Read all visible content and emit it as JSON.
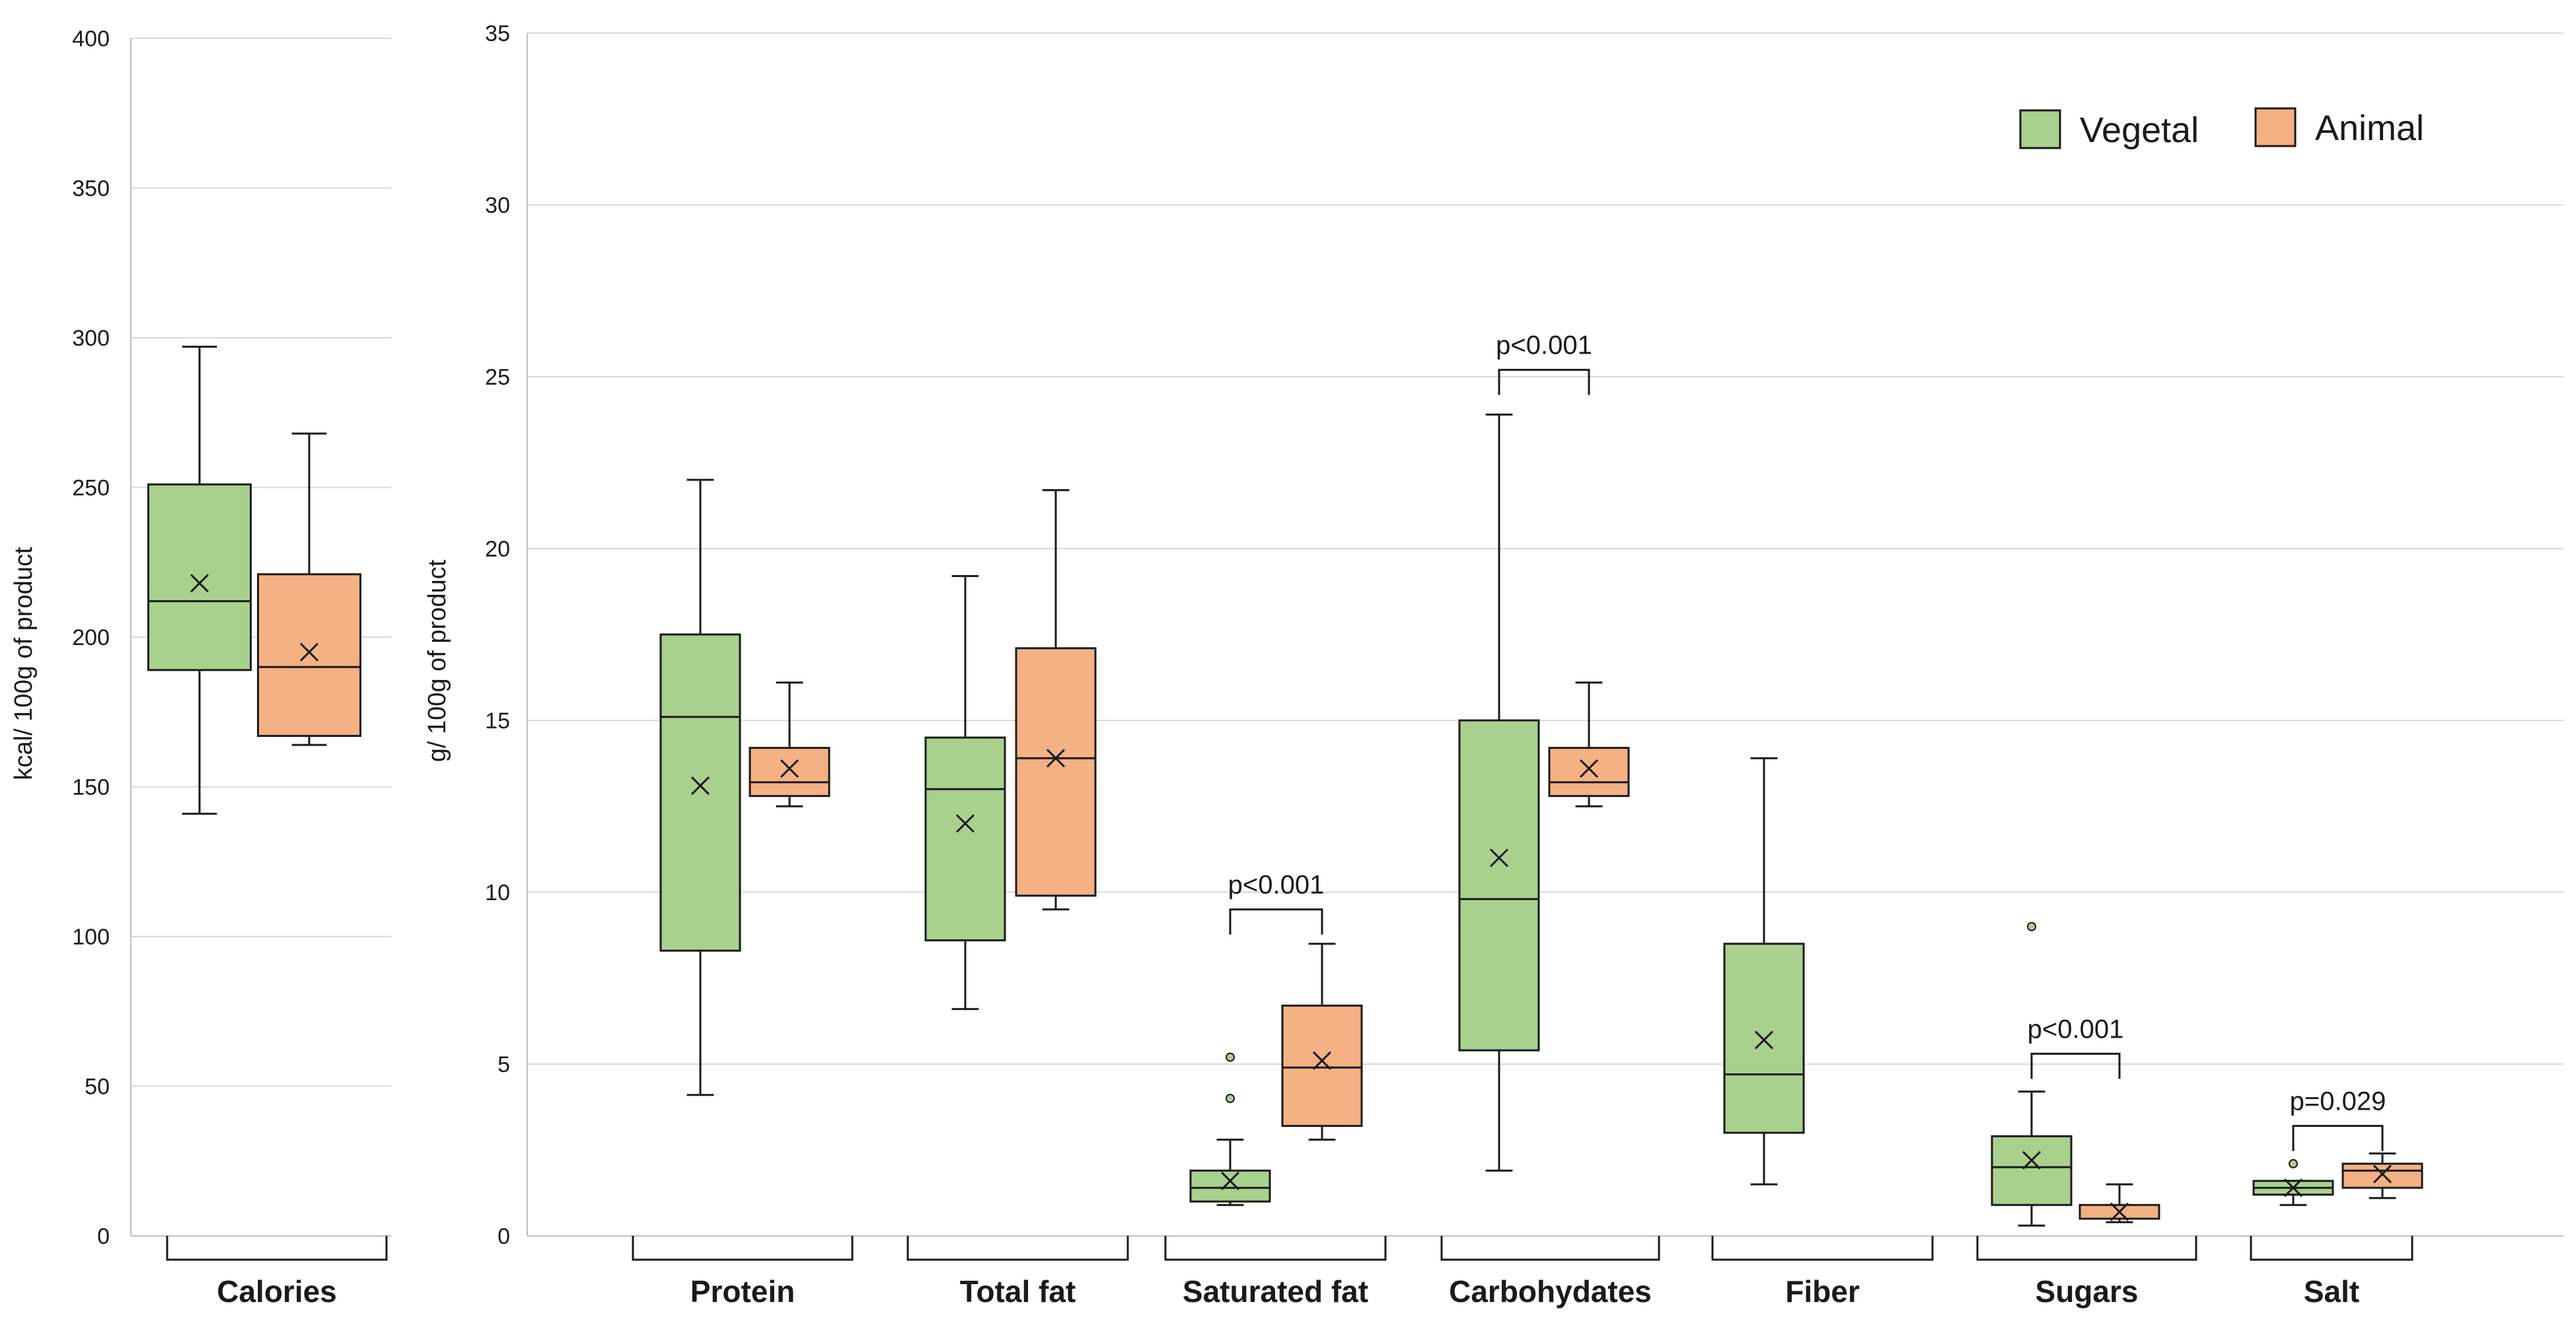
{
  "colors": {
    "Vegetal": "#a9d18e",
    "Animal": "#f4b183"
  },
  "chart_data": [
    {
      "type": "box",
      "panel": "calories",
      "ylabel": "kcal/ 100g of product",
      "ylim": [
        0,
        400
      ],
      "yticks": [
        0,
        50,
        100,
        150,
        200,
        250,
        300,
        350,
        400
      ],
      "categories": [
        "Calories"
      ],
      "series": [
        {
          "name": "Vegetal",
          "stats": [
            {
              "min": 141,
              "q1": 189,
              "median": 212,
              "q3": 251,
              "max": 297,
              "mean": 218,
              "outliers": []
            }
          ]
        },
        {
          "name": "Animal",
          "stats": [
            {
              "min": 164,
              "q1": 167,
              "median": 190,
              "q3": 221,
              "max": 268,
              "mean": 195,
              "outliers": []
            }
          ]
        }
      ],
      "annotations": []
    },
    {
      "type": "box",
      "panel": "nutrients",
      "ylabel": "g/ 100g of product",
      "ylim": [
        0,
        35
      ],
      "yticks": [
        0,
        5,
        10,
        15,
        20,
        25,
        30,
        35
      ],
      "categories": [
        "Protein",
        "Total fat",
        "Saturated fat",
        "Carbohydates",
        "Fiber",
        "Sugars",
        "Salt"
      ],
      "legend": {
        "position": "top-right",
        "entries": [
          "Vegetal",
          "Animal"
        ]
      },
      "series": [
        {
          "name": "Vegetal",
          "stats": [
            {
              "min": 4.1,
              "q1": 8.3,
              "median": 15.1,
              "q3": 17.5,
              "max": 22.0,
              "mean": 13.1,
              "outliers": []
            },
            {
              "min": 6.6,
              "q1": 8.6,
              "median": 13.0,
              "q3": 14.5,
              "max": 19.2,
              "mean": 12.0,
              "outliers": []
            },
            {
              "min": 0.9,
              "q1": 1.0,
              "median": 1.4,
              "q3": 1.9,
              "max": 2.8,
              "mean": 1.6,
              "outliers": [
                4.0,
                5.2
              ]
            },
            {
              "min": 1.9,
              "q1": 5.4,
              "median": 9.8,
              "q3": 15.0,
              "max": 23.9,
              "mean": 11.0,
              "outliers": []
            },
            {
              "min": 1.5,
              "q1": 3.0,
              "median": 4.7,
              "q3": 8.5,
              "max": 13.9,
              "mean": 5.7,
              "outliers": []
            },
            {
              "min": 0.3,
              "q1": 0.9,
              "median": 2.0,
              "q3": 2.9,
              "max": 4.2,
              "mean": 2.2,
              "outliers": [
                9.0
              ]
            },
            {
              "min": 0.9,
              "q1": 1.2,
              "median": 1.4,
              "q3": 1.6,
              "max": 1.6,
              "mean": 1.4,
              "outliers": [
                2.1
              ]
            }
          ]
        },
        {
          "name": "Animal",
          "stats": [
            {
              "min": 12.5,
              "q1": 12.8,
              "median": 13.2,
              "q3": 14.2,
              "max": 16.1,
              "mean": 13.6,
              "outliers": []
            },
            {
              "min": 9.5,
              "q1": 9.9,
              "median": 13.9,
              "q3": 17.1,
              "max": 21.7,
              "mean": 13.9,
              "outliers": []
            },
            {
              "min": 2.8,
              "q1": 3.2,
              "median": 4.9,
              "q3": 6.7,
              "max": 8.5,
              "mean": 5.1,
              "outliers": []
            },
            {
              "min": 12.5,
              "q1": 12.8,
              "median": 13.2,
              "q3": 14.2,
              "max": 16.1,
              "mean": 13.6,
              "outliers": []
            },
            null,
            {
              "min": 0.4,
              "q1": 0.5,
              "median": 0.5,
              "q3": 0.9,
              "max": 1.5,
              "mean": 0.7,
              "outliers": []
            },
            {
              "min": 1.1,
              "q1": 1.4,
              "median": 1.9,
              "q3": 2.1,
              "max": 2.4,
              "mean": 1.8,
              "outliers": []
            }
          ]
        }
      ],
      "annotations": [
        {
          "category": "Saturated fat",
          "text": "p<0.001",
          "y": 9.5
        },
        {
          "category": "Carbohydates",
          "text": "p<0.001",
          "y": 25.2
        },
        {
          "category": "Sugars",
          "text": "p<0.001",
          "y": 5.3
        },
        {
          "category": "Salt",
          "text": "p=0.029",
          "y": 3.2
        }
      ]
    }
  ]
}
